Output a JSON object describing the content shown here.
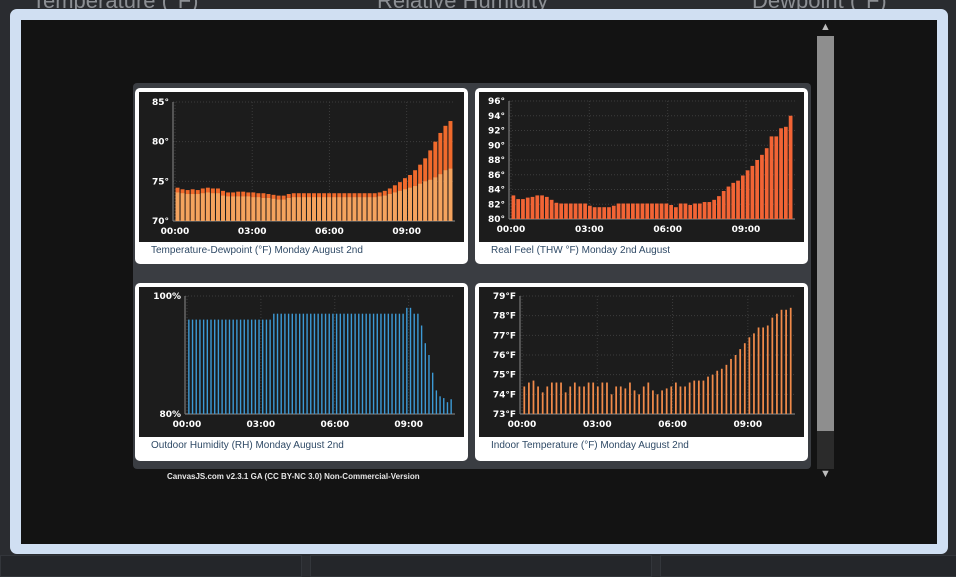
{
  "background_titles": [
    "Temperature (°F)",
    "Relative Humidity",
    "Dewpoint (°F)"
  ],
  "credit": "CanvasJS.com v2.3.1 GA (CC BY-NC 3.0) Non-Commercial-Version",
  "scroll": {
    "up": "▲",
    "down": "▼"
  },
  "chart_data": [
    {
      "type": "bar",
      "title": "Temperature-Dewpoint (°F) Monday August 2nd",
      "x_labels": [
        "00:00",
        "03:00",
        "06:00",
        "09:00"
      ],
      "y_labels": [
        "70°",
        "75°",
        "80°",
        "85°"
      ],
      "ylim": [
        70,
        85
      ],
      "series": [
        {
          "name": "Temperature",
          "color": "#f06a2c",
          "values": [
            74.2,
            74.0,
            73.9,
            74.0,
            73.9,
            74.1,
            74.2,
            74.1,
            74.1,
            73.8,
            73.6,
            73.6,
            73.7,
            73.7,
            73.6,
            73.6,
            73.5,
            73.5,
            73.4,
            73.3,
            73.2,
            73.2,
            73.4,
            73.5,
            73.5,
            73.5,
            73.5,
            73.5,
            73.5,
            73.5,
            73.5,
            73.5,
            73.5,
            73.5,
            73.5,
            73.5,
            73.5,
            73.5,
            73.5,
            73.5,
            73.6,
            73.8,
            74.1,
            74.5,
            74.9,
            75.4,
            75.8,
            76.4,
            77.1,
            77.9,
            78.9,
            80.0,
            81.1,
            82.0,
            82.6
          ]
        },
        {
          "name": "Dewpoint",
          "color": "#f4a35e",
          "values": [
            73.6,
            73.5,
            73.4,
            73.4,
            73.4,
            73.5,
            73.6,
            73.5,
            73.5,
            73.2,
            73.1,
            73.1,
            73.1,
            73.1,
            73.1,
            73.0,
            73.0,
            72.9,
            72.9,
            72.8,
            72.7,
            72.7,
            72.9,
            73.0,
            73.0,
            73.0,
            73.0,
            73.0,
            73.0,
            73.0,
            73.0,
            73.0,
            73.0,
            73.0,
            73.0,
            73.0,
            73.0,
            73.0,
            73.0,
            73.0,
            73.1,
            73.2,
            73.4,
            73.6,
            73.8,
            74.0,
            74.2,
            74.4,
            74.7,
            75.0,
            75.2,
            75.5,
            75.9,
            76.4,
            76.6
          ]
        }
      ]
    },
    {
      "type": "bar",
      "title": "Real Feel (THW °F) Monday 2nd August",
      "x_labels": [
        "00:00",
        "03:00",
        "06:00",
        "09:00"
      ],
      "y_labels": [
        "80°",
        "82°",
        "84°",
        "86°",
        "88°",
        "90°",
        "92°",
        "94°",
        "96°"
      ],
      "ylim": [
        80,
        96
      ],
      "series": [
        {
          "name": "Real Feel",
          "color": "#f26435",
          "values": [
            83.2,
            82.7,
            82.7,
            82.9,
            83.0,
            83.2,
            83.2,
            83.0,
            82.6,
            82.2,
            82.1,
            82.1,
            82.1,
            82.1,
            82.1,
            82.1,
            81.8,
            81.6,
            81.6,
            81.6,
            81.6,
            81.8,
            82.1,
            82.1,
            82.1,
            82.1,
            82.1,
            82.1,
            82.1,
            82.1,
            82.1,
            82.1,
            82.1,
            81.9,
            81.6,
            82.1,
            82.1,
            81.9,
            82.1,
            82.1,
            82.3,
            82.3,
            82.6,
            83.1,
            83.8,
            84.4,
            84.9,
            85.2,
            85.9,
            86.6,
            87.2,
            88.0,
            88.7,
            89.6,
            91.2,
            91.2,
            92.3,
            92.5,
            94.0
          ]
        }
      ]
    },
    {
      "type": "bar",
      "title": "Outdoor Humidity (RH) Monday August 2nd",
      "x_labels": [
        "00:00",
        "03:00",
        "06:00",
        "09:00"
      ],
      "y_labels": [
        "80%",
        "100%"
      ],
      "ylim": [
        80,
        100
      ],
      "series": [
        {
          "name": "Humidity",
          "color": "#3c9ad6",
          "values": [
            96,
            96,
            96,
            96,
            96,
            96,
            96,
            96,
            96,
            96,
            96,
            96,
            96,
            96,
            96,
            96,
            96,
            96,
            96,
            96,
            96,
            96,
            96,
            97,
            97,
            97,
            97,
            97,
            97,
            97,
            97,
            97,
            97,
            97,
            97,
            97,
            97,
            97,
            97,
            97,
            97,
            97,
            97,
            97,
            97,
            97,
            97,
            97,
            97,
            97,
            97,
            97,
            97,
            97,
            97,
            97,
            97,
            97,
            97,
            98,
            98,
            97,
            97,
            95,
            92,
            90,
            87,
            84,
            83,
            82.7,
            82,
            82.5
          ]
        }
      ]
    },
    {
      "type": "bar",
      "title": "Indoor Temperature (°F) Monday August 2nd",
      "x_labels": [
        "00:00",
        "03:00",
        "06:00",
        "09:00"
      ],
      "y_labels": [
        "73°F",
        "74°F",
        "75°F",
        "76°F",
        "77°F",
        "78°F",
        "79°F"
      ],
      "ylim": [
        73,
        79
      ],
      "series": [
        {
          "name": "Indoor Temperature",
          "color": "#f08a4a",
          "values": [
            74.4,
            74.6,
            74.7,
            74.4,
            74.1,
            74.4,
            74.6,
            74.6,
            74.6,
            74.1,
            74.4,
            74.6,
            74.4,
            74.4,
            74.6,
            74.6,
            74.4,
            74.6,
            74.6,
            74.0,
            74.4,
            74.4,
            74.3,
            74.6,
            74.2,
            74.0,
            74.4,
            74.6,
            74.2,
            74.0,
            74.2,
            74.3,
            74.4,
            74.6,
            74.4,
            74.4,
            74.6,
            74.7,
            74.7,
            74.7,
            74.9,
            75.0,
            75.2,
            75.3,
            75.5,
            75.8,
            76.0,
            76.3,
            76.6,
            76.9,
            77.1,
            77.4,
            77.4,
            77.5,
            77.9,
            78.1,
            78.3,
            78.3,
            78.4
          ]
        }
      ]
    }
  ]
}
